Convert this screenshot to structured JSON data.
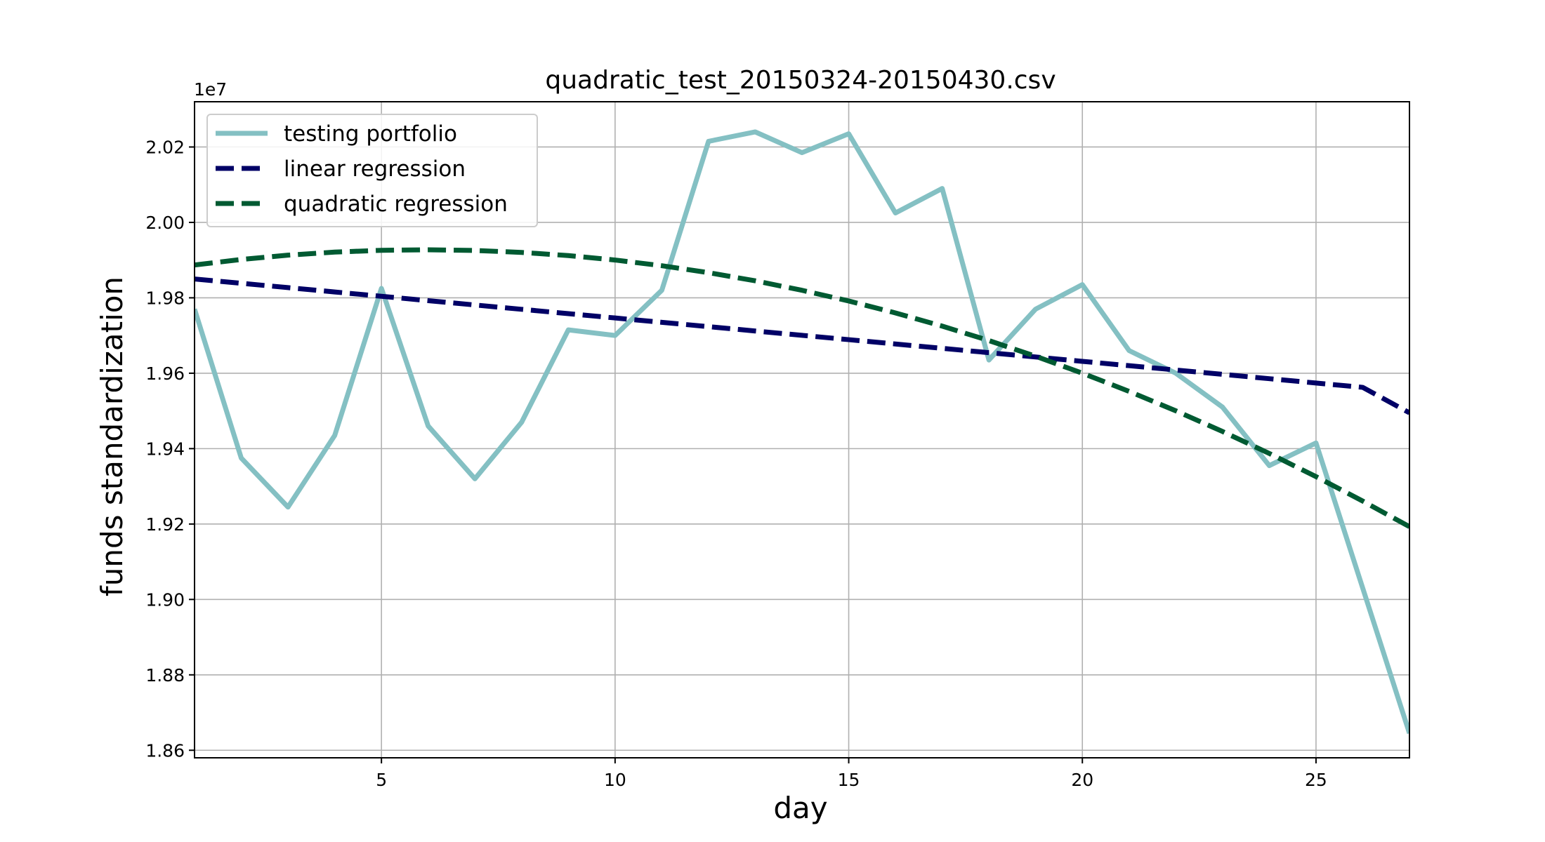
{
  "chart_data": {
    "type": "line",
    "title": "quadratic_test_20150324-20150430.csv",
    "xlabel": "day",
    "ylabel": "funds standardization",
    "y_offset_label": "1e7",
    "xlim": [
      1,
      27
    ],
    "ylim": [
      1.858,
      2.032
    ],
    "x_ticks": [
      5,
      10,
      15,
      20,
      25
    ],
    "x_tick_labels": [
      "5",
      "10",
      "15",
      "20",
      "25"
    ],
    "y_ticks": [
      1.86,
      1.88,
      1.9,
      1.92,
      1.94,
      1.96,
      1.98,
      2.0,
      2.02
    ],
    "y_tick_labels": [
      "1.86",
      "1.88",
      "1.90",
      "1.92",
      "1.94",
      "1.96",
      "1.98",
      "2.00",
      "2.02"
    ],
    "grid": true,
    "legend_position": "top-left",
    "x": [
      1,
      2,
      3,
      4,
      5,
      6,
      7,
      8,
      9,
      10,
      11,
      12,
      13,
      14,
      15,
      16,
      17,
      18,
      19,
      20,
      21,
      22,
      23,
      24,
      25,
      26,
      27
    ],
    "series": [
      {
        "name": "testing portfolio",
        "color": "#84c0c3",
        "style": "solid",
        "values": [
          1.977,
          1.9375,
          1.9245,
          1.9435,
          1.9825,
          1.946,
          1.932,
          1.947,
          1.9715,
          1.97,
          1.982,
          2.0215,
          2.024,
          2.0185,
          2.0235,
          2.0025,
          2.009,
          1.9635,
          1.977,
          1.9835,
          1.966,
          1.96,
          1.951,
          1.9355,
          1.9415,
          1.903,
          1.8645
        ]
      },
      {
        "name": "linear regression",
        "color": "#000066",
        "style": "dashed",
        "values": [
          1.985,
          1.98385,
          1.9827,
          1.98155,
          1.9804,
          1.97925,
          1.9781,
          1.97695,
          1.9758,
          1.97465,
          1.9735,
          1.97235,
          1.9712,
          1.97005,
          1.9689,
          1.96775,
          1.9666,
          1.96545,
          1.9643,
          1.96315,
          1.962,
          1.96085,
          1.9597,
          1.95855,
          1.9574,
          1.95625,
          1.9495
        ]
      },
      {
        "name": "quadratic regression",
        "color": "#005a32",
        "style": "dashed",
        "values": [
          1.9887,
          1.99017,
          1.99131,
          1.99212,
          1.9926,
          1.99274,
          1.99256,
          1.99204,
          1.9912,
          1.99002,
          1.98851,
          1.98667,
          1.9845,
          1.98199,
          1.97916,
          1.97599,
          1.97249,
          1.96866,
          1.9645,
          1.96001,
          1.95518,
          1.95003,
          1.94454,
          1.93872,
          1.93257,
          1.92609,
          1.9193
        ]
      }
    ]
  }
}
